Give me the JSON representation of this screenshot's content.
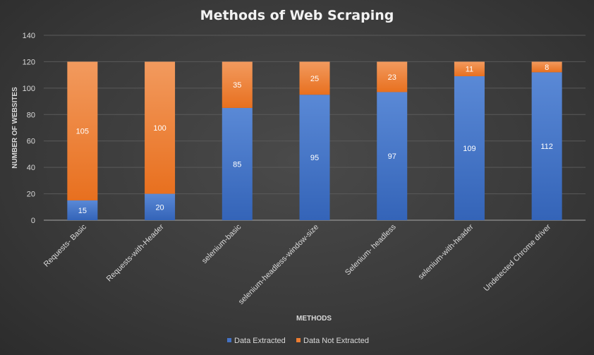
{
  "chart_data": {
    "type": "bar",
    "stacked": true,
    "title": "Methods of Web Scraping",
    "xlabel": "METHODS",
    "ylabel": "NUMBER OF WEBSITES",
    "ylim": [
      0,
      140
    ],
    "yticks": [
      0,
      20,
      40,
      60,
      80,
      100,
      120,
      140
    ],
    "grid": true,
    "legend_position": "bottom",
    "categories": [
      "Requests- Basic",
      "Requests-with-Header",
      "selenium-basic",
      "selenium-headless-window-size",
      "Selenium- headless",
      "selenium-with-header",
      "Undetected Chrome driver"
    ],
    "series": [
      {
        "name": "Data Extracted",
        "color": "#4472c4",
        "values": [
          15,
          20,
          85,
          95,
          97,
          109,
          112
        ]
      },
      {
        "name": "Data Not Extracted",
        "color": "#ed7d31",
        "values": [
          105,
          100,
          35,
          25,
          23,
          11,
          8
        ]
      }
    ]
  }
}
